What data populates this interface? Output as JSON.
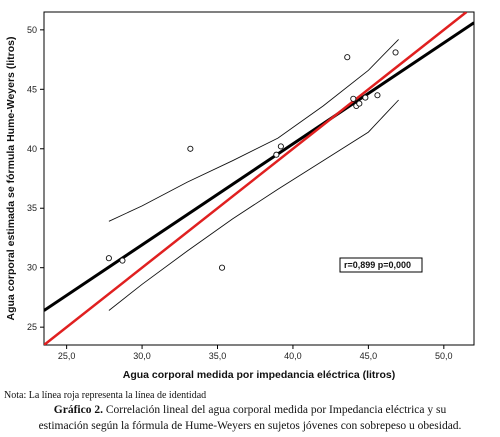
{
  "chart_data": {
    "type": "scatter",
    "xlabel": "Agua corporal medida por impedancia eléctrica (litros)",
    "ylabel": "Agua corporal estimada se fórmula Hume-Weyers (litros)",
    "xlim": [
      23.5,
      52.0
    ],
    "ylim": [
      23.5,
      51.5
    ],
    "xticks": [
      "25,0",
      "30,0",
      "35,0",
      "40,0",
      "45,0",
      "50,0"
    ],
    "yticks": [
      "25",
      "30",
      "35",
      "40",
      "45",
      "50"
    ],
    "points": [
      {
        "x": 27.8,
        "y": 30.8
      },
      {
        "x": 28.7,
        "y": 30.6
      },
      {
        "x": 33.2,
        "y": 40.0
      },
      {
        "x": 35.3,
        "y": 30.0
      },
      {
        "x": 38.9,
        "y": 39.5
      },
      {
        "x": 39.2,
        "y": 40.2
      },
      {
        "x": 43.6,
        "y": 47.7
      },
      {
        "x": 44.0,
        "y": 44.2
      },
      {
        "x": 44.2,
        "y": 43.6
      },
      {
        "x": 44.4,
        "y": 43.8
      },
      {
        "x": 44.8,
        "y": 44.3
      },
      {
        "x": 45.6,
        "y": 44.5
      },
      {
        "x": 46.8,
        "y": 48.1
      }
    ],
    "regression_line": {
      "color": "#000000",
      "start": {
        "x": 23.5,
        "y": 26.4
      },
      "end": {
        "x": 52.0,
        "y": 50.6
      }
    },
    "identity_line": {
      "color": "#e02020",
      "start": {
        "x": 23.5,
        "y": 23.5
      },
      "end": {
        "x": 51.5,
        "y": 51.5
      }
    },
    "confidence_upper": [
      {
        "x": 27.8,
        "y": 33.9
      },
      {
        "x": 30.0,
        "y": 35.2
      },
      {
        "x": 33.0,
        "y": 37.2
      },
      {
        "x": 36.0,
        "y": 39.0
      },
      {
        "x": 39.0,
        "y": 40.9
      },
      {
        "x": 42.0,
        "y": 43.6
      },
      {
        "x": 45.0,
        "y": 46.6
      },
      {
        "x": 47.0,
        "y": 49.2
      }
    ],
    "confidence_lower": [
      {
        "x": 27.8,
        "y": 26.4
      },
      {
        "x": 30.0,
        "y": 28.6
      },
      {
        "x": 33.0,
        "y": 31.4
      },
      {
        "x": 36.0,
        "y": 34.1
      },
      {
        "x": 39.0,
        "y": 36.6
      },
      {
        "x": 42.0,
        "y": 39.0
      },
      {
        "x": 45.0,
        "y": 41.4
      },
      {
        "x": 47.0,
        "y": 44.1
      }
    ],
    "annotation": "r=0,899  p=0,000",
    "grid": false
  },
  "note": "Nota: La línea roja representa la línea de identidad",
  "caption": {
    "lead": "Gráfico 2.",
    "line1": " Correlación lineal del agua corporal medida por Impedancia eléctrica y su",
    "line2": "estimación según la fórmula de Hume-Weyers en sujetos jóvenes con sobrepeso u obesidad."
  }
}
